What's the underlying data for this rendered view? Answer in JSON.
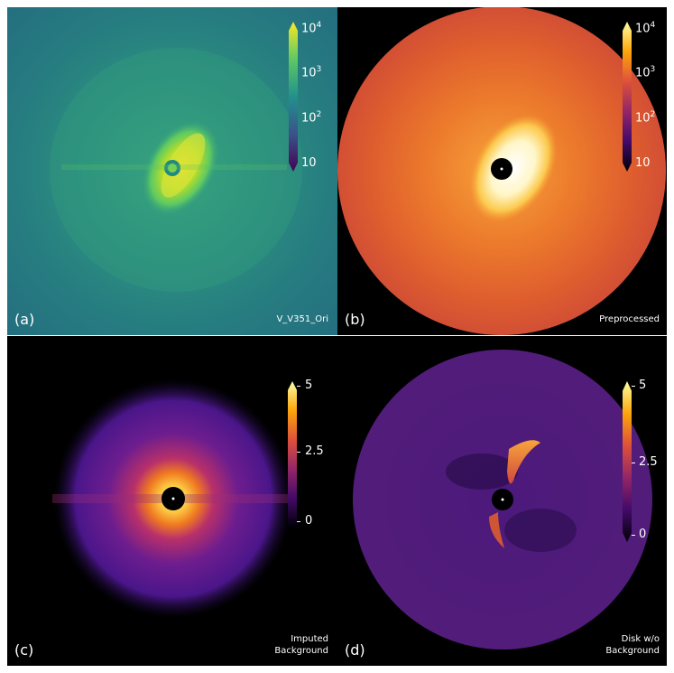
{
  "panels": {
    "a": {
      "tag": "(a)",
      "caption_line1": "V_V351_Ori",
      "caption_line2": "",
      "ticks": {
        "t1_base": "10",
        "t1_exp": "4",
        "t2_base": "10",
        "t2_exp": "3",
        "t3_base": "10",
        "t3_exp": "2",
        "t4": "10"
      }
    },
    "b": {
      "tag": "(b)",
      "caption_line1": "Preprocessed",
      "caption_line2": "",
      "ticks": {
        "t1_base": "10",
        "t1_exp": "4",
        "t2_base": "10",
        "t2_exp": "3",
        "t3_base": "10",
        "t3_exp": "2",
        "t4": "10"
      }
    },
    "c": {
      "tag": "(c)",
      "caption_line1": "Imputed",
      "caption_line2": "Background",
      "ticks": {
        "t1": "5",
        "t2": "2.5",
        "t3": "0"
      }
    },
    "d": {
      "tag": "(d)",
      "caption_line1": "Disk w/o",
      "caption_line2": "Background",
      "ticks": {
        "t1": "5",
        "t2": "2.5",
        "t3": "0"
      }
    }
  },
  "colors": {
    "viridis": [
      "#440154",
      "#3b528b",
      "#21918c",
      "#5ec962",
      "#fde725"
    ],
    "inferno": [
      "#000004",
      "#420a68",
      "#932667",
      "#dd513a",
      "#fca50a",
      "#fcffa4"
    ],
    "panel_a_bg": "#2a8a7c",
    "panel_b_disk": "#d8592e",
    "panel_c_halo": "#5b1a8a",
    "panel_d_disk": "#4e1d7a"
  }
}
